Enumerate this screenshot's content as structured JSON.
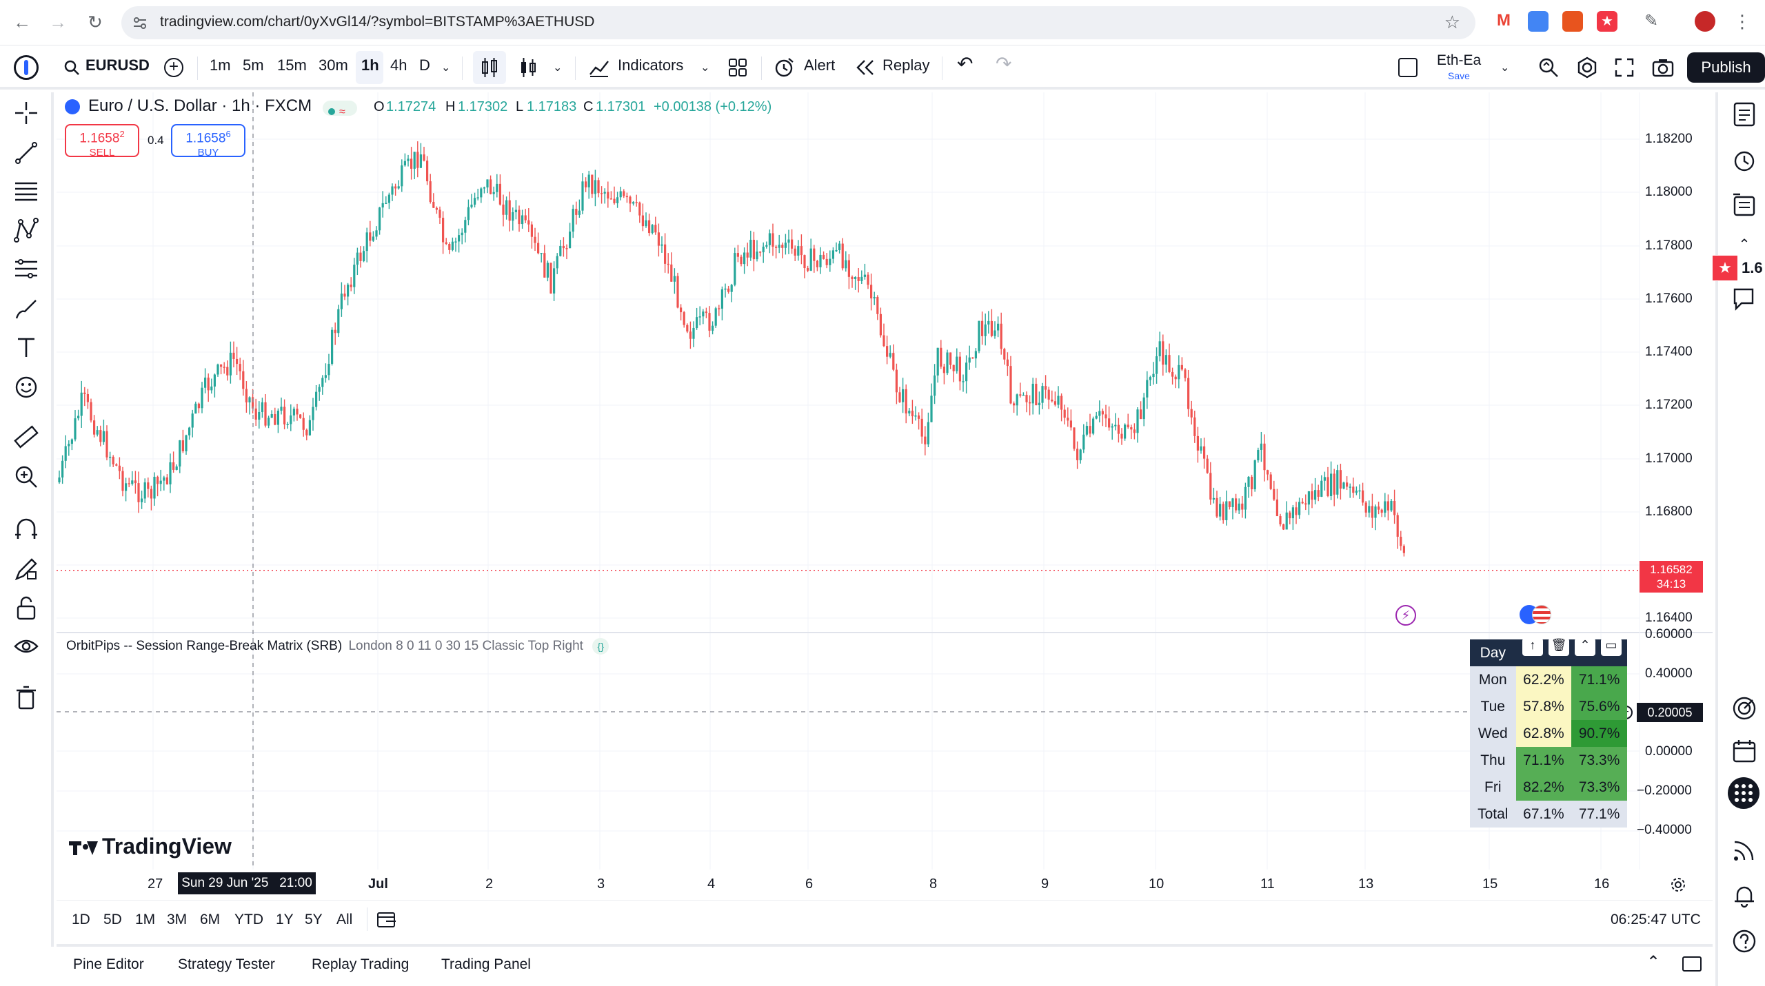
{
  "browser": {
    "url": "tradingview.com/chart/0yXvGl14/?symbol=BITSTAMP%3AETHUSD"
  },
  "toolbar": {
    "symbol": "EURUSD",
    "intervals": [
      "1m",
      "5m",
      "15m",
      "30m",
      "1h",
      "4h",
      "D"
    ],
    "active_interval": "1h",
    "indicators": "Indicators",
    "alert": "Alert",
    "replay": "Replay",
    "layout_name": "Eth-Ea",
    "layout_save": "Save",
    "publish": "Publish"
  },
  "legend": {
    "name": "Euro / U.S. Dollar · 1h · FXCM",
    "o_label": "O",
    "o": "1.17274",
    "h_label": "H",
    "h": "1.17302",
    "l_label": "L",
    "l": "1.17183",
    "c_label": "C",
    "c": "1.17301",
    "change": "+0.00138 (+0.12%)"
  },
  "trade": {
    "sell_price_main": "1.1658",
    "sell_price_sup": "2",
    "sell_label": "SELL",
    "spread": "0.4",
    "buy_price_main": "1.1658",
    "buy_price_sup": "6",
    "buy_label": "BUY"
  },
  "price_axis": [
    "1.18200",
    "1.18000",
    "1.17800",
    "1.17600",
    "1.17400",
    "1.17200",
    "1.17000",
    "1.16800",
    "1.16400"
  ],
  "current_price": {
    "value": "1.16582",
    "countdown": "34:13"
  },
  "right_badge": {
    "value": "1.6"
  },
  "indicator": {
    "title": "OrbitPips -- Session Range-Break Matrix (SRB)",
    "params": "London 8 0 11 0 30 15 Classic Top Right",
    "axis": [
      "0.60000",
      "0.40000",
      "0.20005",
      "0.00000",
      "−0.20000",
      "−0.40000"
    ],
    "crosshair_value": "0.20005"
  },
  "matrix": {
    "header": "Day",
    "rows": [
      {
        "day": "Mon",
        "a": "62.2%",
        "b": "71.1%",
        "ca": "#fbf7c2",
        "cb": "#49a84c"
      },
      {
        "day": "Tue",
        "a": "57.8%",
        "b": "75.6%",
        "ca": "#fbf7c2",
        "cb": "#49a84c"
      },
      {
        "day": "Wed",
        "a": "62.8%",
        "b": "90.7%",
        "ca": "#fbf7c2",
        "cb": "#2e9a35"
      },
      {
        "day": "Thu",
        "a": "71.1%",
        "b": "73.3%",
        "ca": "#56ae55",
        "cb": "#56ae55"
      },
      {
        "day": "Fri",
        "a": "82.2%",
        "b": "73.3%",
        "ca": "#56ae55",
        "cb": "#56ae55"
      },
      {
        "day": "Total",
        "a": "67.1%",
        "b": "77.1%",
        "ca": "#dfe4ee",
        "cb": "#dfe4ee"
      }
    ]
  },
  "watermark": "TradingView",
  "time_axis": [
    "27",
    "Jul",
    "2",
    "3",
    "4",
    "6",
    "8",
    "9",
    "10",
    "11",
    "13",
    "15",
    "16"
  ],
  "crosshair_time": "Sun 29 Jun '25   21:00",
  "ranges": [
    "1D",
    "5D",
    "1M",
    "3M",
    "6M",
    "YTD",
    "1Y",
    "5Y",
    "All"
  ],
  "clock": "06:25:47 UTC",
  "bottom_tabs": [
    "Pine Editor",
    "Strategy Tester",
    "Replay Trading",
    "Trading Panel"
  ],
  "colors": {
    "up": "#26a69a",
    "down": "#ef5350",
    "accent": "#2962ff",
    "price_tag": "#f23645"
  }
}
